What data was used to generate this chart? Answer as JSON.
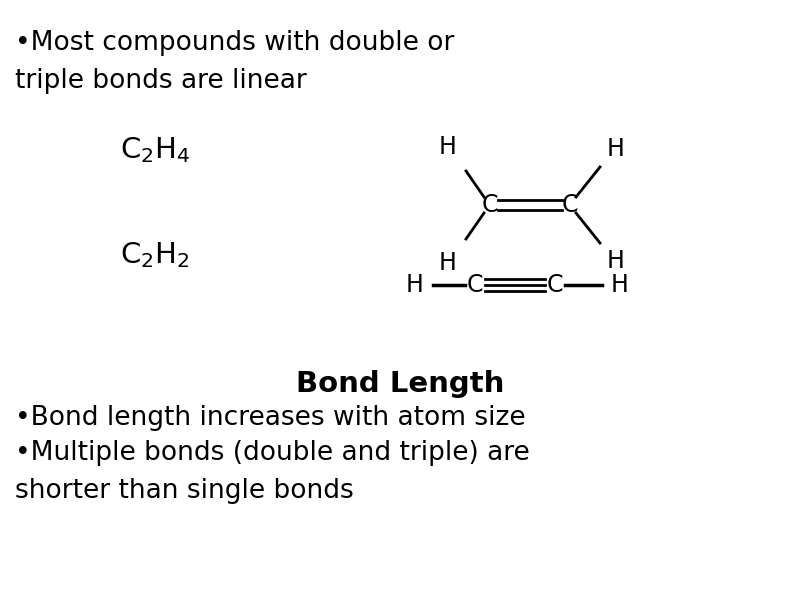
{
  "bg_color": "#ffffff",
  "bullet1_line1": "•Most compounds with double or",
  "bullet1_line2": "triple bonds are linear",
  "c2h4_formula": "$\\mathregular{C_2H_4}$",
  "c2h2_formula": "$\\mathregular{C_2H_2}$",
  "bond_length_title": "Bond Length",
  "bullet2": "•Bond length increases with atom size",
  "bullet3_line1": "•Multiple bonds (double and triple) are",
  "bullet3_line2": "shorter than single bonds",
  "text_color": "#000000",
  "font_size_main": 19,
  "font_size_chem": 19,
  "font_size_title": 21,
  "font_size_struct": 17
}
